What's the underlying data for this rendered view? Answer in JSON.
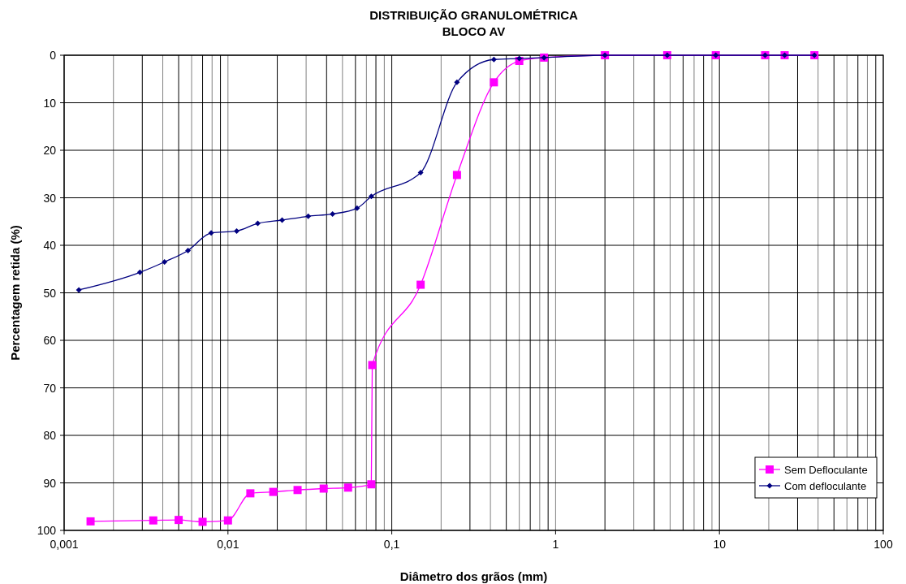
{
  "chart_data": {
    "type": "line",
    "title": "DISTRIBUIÇÃO GRANULOMÉTRICA",
    "subtitle": "BLOCO AV",
    "xlabel": "Diâmetro dos grãos (mm)",
    "ylabel": "Percentagem retida (%)",
    "log": "x",
    "grid": true,
    "legend": "bottom right",
    "xlim": [
      0.001,
      100
    ],
    "xticks": [
      {
        "value": 0.001,
        "label": "0,001"
      },
      {
        "value": 0.01,
        "label": "0,01"
      },
      {
        "value": 0.1,
        "label": "0,1"
      },
      1,
      10,
      100
    ],
    "ylim": [
      100,
      0
    ],
    "yticks": [
      0,
      10,
      20,
      30,
      40,
      50,
      60,
      70,
      80,
      90,
      100
    ],
    "series": [
      {
        "name": "Sem Defloculante",
        "color": "#ff00ff",
        "marker": "square",
        "line_style": "solid",
        "x": [
          0.00145,
          0.0035,
          0.005,
          0.007,
          0.01,
          0.0137,
          0.0189,
          0.0266,
          0.0384,
          0.0541,
          0.075,
          0.076,
          0.15,
          0.25,
          0.42,
          0.6,
          0.85,
          2.0,
          4.8,
          9.5,
          19,
          25,
          38
        ],
        "values": [
          98.1,
          97.9,
          97.8,
          98.2,
          97.9,
          92.2,
          91.9,
          91.5,
          91.2,
          91.0,
          90.3,
          65.2,
          48.3,
          25.2,
          5.7,
          1.2,
          0.5,
          0,
          0,
          0,
          0,
          0,
          0
        ]
      },
      {
        "name": "Com defloculante",
        "color": "#000080",
        "marker": "diamond",
        "line_style": "solid",
        "x": [
          0.00123,
          0.0029,
          0.0041,
          0.0057,
          0.0079,
          0.0113,
          0.0152,
          0.0214,
          0.0309,
          0.0435,
          0.0614,
          0.075,
          0.15,
          0.25,
          0.42,
          0.6,
          0.85,
          2.0,
          4.8,
          9.5,
          19,
          25,
          38
        ],
        "values": [
          49.4,
          45.7,
          43.5,
          41.1,
          37.4,
          37.0,
          35.4,
          34.7,
          33.9,
          33.4,
          32.2,
          29.7,
          24.7,
          5.7,
          0.9,
          0.7,
          0.5,
          0,
          0,
          0,
          0,
          0,
          0
        ]
      }
    ]
  }
}
